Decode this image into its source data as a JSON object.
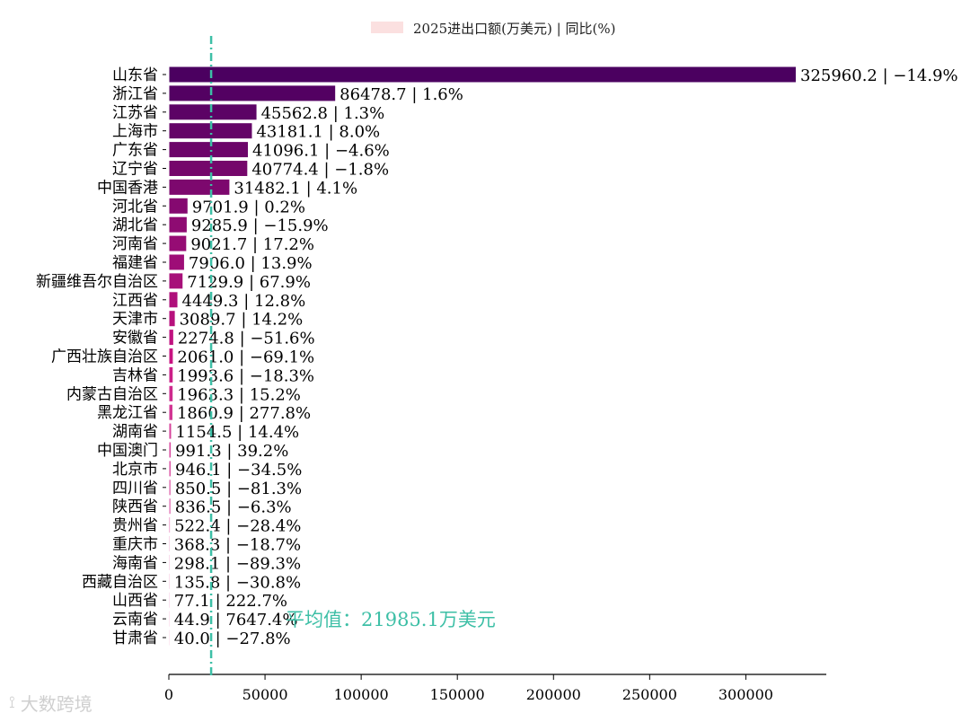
{
  "chart_data": {
    "type": "bar",
    "orientation": "horizontal",
    "legend": {
      "label": "2025进出口额(万美元) | 同比(%)",
      "position": "top-center"
    },
    "categories": [
      "山东省",
      "浙江省",
      "江苏省",
      "上海市",
      "广东省",
      "辽宁省",
      "中国香港",
      "河北省",
      "湖北省",
      "河南省",
      "福建省",
      "新疆维吾尔自治区",
      "江西省",
      "天津市",
      "安徽省",
      "广西壮族自治区",
      "吉林省",
      "内蒙古自治区",
      "黑龙江省",
      "湖南省",
      "中国澳门",
      "北京市",
      "四川省",
      "陕西省",
      "贵州省",
      "重庆市",
      "海南省",
      "西藏自治区",
      "山西省",
      "云南省",
      "甘肃省"
    ],
    "values": [
      325960.2,
      86478.7,
      45562.8,
      43181.1,
      41096.1,
      40774.4,
      31482.1,
      9701.9,
      9285.9,
      9021.7,
      7906.0,
      7129.9,
      4449.3,
      3089.7,
      2274.8,
      2061.0,
      1993.6,
      1963.3,
      1860.9,
      1154.5,
      991.3,
      946.1,
      850.5,
      836.5,
      522.4,
      368.3,
      298.1,
      135.8,
      77.1,
      44.9,
      40.0
    ],
    "yoy": [
      "-14.9%",
      "1.6%",
      "1.3%",
      "8.0%",
      "-4.6%",
      "-1.8%",
      "4.1%",
      "0.2%",
      "-15.9%",
      "17.2%",
      "13.9%",
      "67.9%",
      "12.8%",
      "14.2%",
      "-51.6%",
      "-69.1%",
      "-18.3%",
      "15.2%",
      "277.8%",
      "14.4%",
      "39.2%",
      "-34.5%",
      "-81.3%",
      "-6.3%",
      "-28.4%",
      "-18.7%",
      "-89.3%",
      "-30.8%",
      "222.7%",
      "7647.4%",
      "-27.8%"
    ],
    "data_labels": [
      "325960.2 | −14.9%",
      "86478.7 | 1.6%",
      "45562.8 | 1.3%",
      "43181.1 | 8.0%",
      "41096.1 | −4.6%",
      "40774.4 | −1.8%",
      "31482.1 | 4.1%",
      "9701.9 | 0.2%",
      "9285.9 | −15.9%",
      "9021.7 | 17.2%",
      "7906.0 | 13.9%",
      "7129.9 | 67.9%",
      "4449.3 | 12.8%",
      "3089.7 | 14.2%",
      "2274.8 | −51.6%",
      "2061.0 | −69.1%",
      "1993.6 | −18.3%",
      "1963.3 | 15.2%",
      "1860.9 | 277.8%",
      "1154.5 | 14.4%",
      "991.3 | 39.2%",
      "946.1 | −34.5%",
      "850.5 | −81.3%",
      "836.5 | −6.3%",
      "522.4 | −28.4%",
      "368.3 | −18.7%",
      "298.1 | −89.3%",
      "135.8 | −30.8%",
      "77.1 | 222.7%",
      "44.9 | 7647.4%",
      "40.0 | −27.8%"
    ],
    "xlim": [
      0,
      342000
    ],
    "xticks": [
      0,
      50000,
      100000,
      150000,
      200000,
      250000,
      300000
    ],
    "average": {
      "value": 21985.1,
      "label": "平均值：21985.1万美元",
      "color": "#3dbfa6"
    },
    "colors": {
      "bar_start": "#4b0060",
      "bar_end": "#f7b8d8",
      "legend_swatch": "#fbe0e0"
    }
  },
  "watermark": {
    "text": "大数跨境",
    "icon": "brand-logo-icon"
  }
}
